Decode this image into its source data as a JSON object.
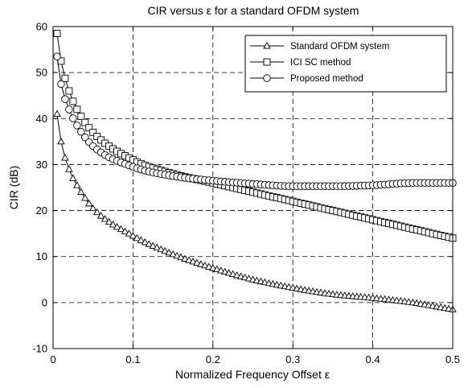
{
  "chart_data": {
    "type": "line",
    "title": "CIR versus ε for a standard OFDM system",
    "xlabel": "Normalized Frequency Offset ε",
    "ylabel": "CIR (dB)",
    "xlim": [
      0,
      0.5
    ],
    "ylim": [
      -10,
      60
    ],
    "xticks": [
      "0",
      "0.1",
      "0.2",
      "0.3",
      "0.4",
      "0.5"
    ],
    "yticks": [
      "-10",
      "0",
      "10",
      "20",
      "30",
      "40",
      "50",
      "60"
    ],
    "grid": true,
    "legend_position": "top-right",
    "series": [
      {
        "name": "Standard OFDM system",
        "marker": "triangle",
        "x": [
          0.005,
          0.01,
          0.02,
          0.03,
          0.05,
          0.1,
          0.15,
          0.2,
          0.25,
          0.3,
          0.35,
          0.4,
          0.45,
          0.5
        ],
        "y": [
          41,
          35,
          29,
          25.5,
          20.5,
          14.5,
          10.5,
          7.5,
          5,
          3.2,
          1.8,
          1,
          0,
          -1.5
        ]
      },
      {
        "name": "ICI SC method",
        "marker": "square",
        "x": [
          0.005,
          0.01,
          0.02,
          0.03,
          0.05,
          0.1,
          0.15,
          0.2,
          0.25,
          0.3,
          0.35,
          0.4,
          0.45,
          0.5
        ],
        "y": [
          58.5,
          52.5,
          46,
          42,
          37,
          31,
          28,
          26,
          24,
          22,
          20,
          18,
          16,
          14
        ]
      },
      {
        "name": "Proposed method",
        "marker": "circle",
        "x": [
          0.005,
          0.01,
          0.02,
          0.03,
          0.05,
          0.1,
          0.15,
          0.2,
          0.25,
          0.3,
          0.35,
          0.4,
          0.45,
          0.5
        ],
        "y": [
          53.5,
          47.5,
          42,
          38.5,
          34,
          29.5,
          27.5,
          26.5,
          25.8,
          25.3,
          25.3,
          25.5,
          26,
          26
        ]
      }
    ]
  }
}
